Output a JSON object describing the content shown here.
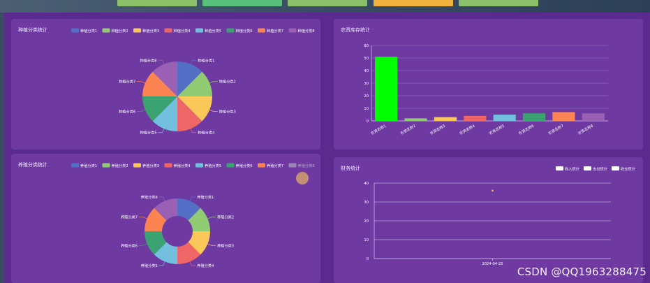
{
  "top_buttons": [
    {
      "label": "",
      "color": "#8cc068"
    },
    {
      "label": "",
      "color": "#57c07a"
    },
    {
      "label": "",
      "color": "#8cc068"
    },
    {
      "label": "",
      "color": "#f2b33d"
    },
    {
      "label": "",
      "color": "#8cc068"
    }
  ],
  "palette": [
    "#5470c6",
    "#91cc75",
    "#fac858",
    "#ee6666",
    "#73c0de",
    "#3ba272",
    "#fc8452",
    "#9a60b4"
  ],
  "watermark": "CSDN @QQ1963288475",
  "chart_data": [
    {
      "id": "planting",
      "type": "pie",
      "title": "种植分类统计",
      "legend_position": "top-right",
      "categories": [
        "种植分类1",
        "种植分类2",
        "种植分类3",
        "种植分类4",
        "种植分类5",
        "种植分类6",
        "种植分类7",
        "种植分类8"
      ],
      "values": [
        1,
        1,
        1,
        1,
        1,
        1,
        1,
        1
      ],
      "legend_selected": [
        true,
        true,
        true,
        true,
        true,
        true,
        true,
        true
      ]
    },
    {
      "id": "inventory",
      "type": "bar",
      "title": "农资库存统计",
      "categories": [
        "农资名称1",
        "农资名称2",
        "农资名称3",
        "农资名称4",
        "农资名称5",
        "农资名称6",
        "农资名称7",
        "农资名称8"
      ],
      "values": [
        51,
        2,
        3,
        4,
        5,
        6,
        7,
        6
      ],
      "colors": [
        "#00ff00",
        "#91cc75",
        "#fac858",
        "#ee6666",
        "#73c0de",
        "#3ba272",
        "#fc8452",
        "#9a60b4"
      ],
      "ylim": [
        0,
        60
      ],
      "yticks": [
        0,
        10,
        20,
        30,
        40,
        50,
        60
      ],
      "grid": true
    },
    {
      "id": "breeding",
      "type": "pie",
      "title": "养殖分类统计",
      "legend_position": "top-right",
      "categories": [
        "养殖分类1",
        "养殖分类2",
        "养殖分类3",
        "养殖分类4",
        "养殖分类5",
        "养殖分类6",
        "养殖分类7",
        "养殖分类8"
      ],
      "values": [
        1,
        1,
        1,
        1,
        1,
        1,
        1,
        1
      ],
      "legend_selected": [
        true,
        true,
        true,
        true,
        true,
        true,
        true,
        false
      ],
      "donut": true
    },
    {
      "id": "finance",
      "type": "scatter",
      "title": "财务统计",
      "legend_position": "top-right",
      "series": [
        {
          "name": "收入统计",
          "values": [
            36
          ]
        },
        {
          "name": "支出统计",
          "values": [
            null
          ]
        },
        {
          "name": "收支统计",
          "values": [
            null
          ]
        }
      ],
      "categories": [
        "2024-04-25"
      ],
      "ylim": [
        0,
        40
      ],
      "yticks": [
        0,
        10,
        20,
        30,
        40
      ],
      "point_color": "#fac858",
      "grid": true
    }
  ]
}
